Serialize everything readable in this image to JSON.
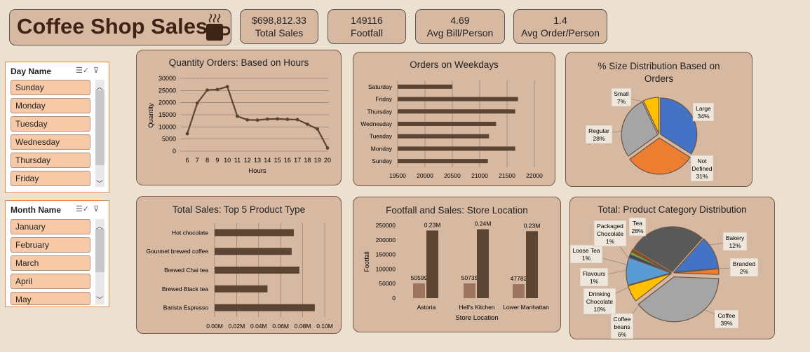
{
  "dashboard": {
    "title": "Coffee Shop Sales"
  },
  "kpis": [
    {
      "value": "$698,812.33",
      "label": "Total Sales"
    },
    {
      "value": "149116",
      "label": "Footfall"
    },
    {
      "value": "4.69",
      "label": "Avg Bill/Person"
    },
    {
      "value": "1.4",
      "label": "Avg Order/Person"
    }
  ],
  "day_slicer": {
    "header": "Day Name",
    "items": [
      "Sunday",
      "Monday",
      "Tuesday",
      "Wednesday",
      "Thursday",
      "Friday"
    ]
  },
  "month_slicer": {
    "header": "Month Name",
    "items": [
      "January",
      "February",
      "March",
      "April",
      "May"
    ]
  },
  "colors": {
    "panel": "#d7b8a1",
    "bar": "#5c4433",
    "bar_light": "#9c7460",
    "accent": "#e58a4a"
  },
  "chart_data": [
    {
      "type": "line",
      "title": "Quantity Orders: Based on Hours",
      "xlabel": "Hours",
      "ylabel": "Quantity",
      "x": [
        6,
        7,
        8,
        9,
        10,
        11,
        12,
        13,
        14,
        15,
        16,
        17,
        18,
        19,
        20
      ],
      "values": [
        7200,
        19800,
        25200,
        25400,
        26600,
        14400,
        12900,
        12800,
        13200,
        13300,
        13100,
        13000,
        11100,
        9100,
        1300
      ],
      "yticks": [
        "0",
        "5000",
        "10000",
        "15000",
        "20000",
        "25000",
        "30000"
      ],
      "ylim": [
        0,
        30000
      ]
    },
    {
      "type": "bar",
      "title": "Orders on Weekdays",
      "categories": [
        "Saturday",
        "Friday",
        "Thursday",
        "Wednesday",
        "Tuesday",
        "Monday",
        "Sunday"
      ],
      "values": [
        20500,
        21700,
        21650,
        21300,
        21170,
        21650,
        21150
      ],
      "xticks": [
        "19500",
        "20000",
        "20500",
        "21000",
        "21500",
        "22000"
      ],
      "xlim": [
        19500,
        22000
      ]
    },
    {
      "type": "pie",
      "title": "% Size Distribution Based on Orders",
      "slices": [
        {
          "label": "Large",
          "pct_label": "34%",
          "value": 34,
          "color": "#4472c4"
        },
        {
          "label": "Not Defined",
          "pct_label": "31%",
          "value": 31,
          "color": "#ed7d31"
        },
        {
          "label": "Regular",
          "pct_label": "28%",
          "value": 28,
          "color": "#a5a5a5"
        },
        {
          "label": "Small",
          "pct_label": "7%",
          "value": 7,
          "color": "#ffc000"
        }
      ]
    },
    {
      "type": "bar",
      "title": "Total Sales: Top 5 Product Type",
      "categories": [
        "Hot chocolate",
        "Gourmet brewed coffee",
        "Brewed Chai tea",
        "Brewed Black tea",
        "Barista Espresso"
      ],
      "values": [
        0.072,
        0.07,
        0.077,
        0.048,
        0.091
      ],
      "xticks": [
        "0.00M",
        "0.02M",
        "0.04M",
        "0.06M",
        "0.08M",
        "0.10M"
      ],
      "xlim": [
        0,
        0.1
      ]
    },
    {
      "type": "bar",
      "title": "Footfall and Sales: Store Location",
      "xlabel": "Store Location",
      "ylabel": "Footfall",
      "categories": [
        "Astoria",
        "Hell's Kitchen",
        "Lower Manhattan"
      ],
      "series": [
        {
          "values": [
            50599,
            50735,
            47782
          ],
          "labels": [
            "50599",
            "50735",
            "47782"
          ],
          "color": "#9c7460"
        },
        {
          "values": [
            232244,
            236511,
            230057
          ],
          "labels": [
            "0.23M",
            "0.24M",
            "0.23M"
          ],
          "color": "#5c4433"
        }
      ],
      "yticks": [
        "0",
        "50000",
        "100000",
        "150000",
        "200000",
        "250000"
      ],
      "ylim": [
        0,
        250000
      ]
    },
    {
      "type": "pie",
      "title": "Total: Product Category Distribution",
      "slices": [
        {
          "label": "Coffee",
          "pct_label": "39%",
          "value": 39,
          "color": "#a5a5a5"
        },
        {
          "label": "Coffee beans",
          "pct_label": "6%",
          "value": 6,
          "color": "#ffc000"
        },
        {
          "label": "Drinking Chocolate",
          "pct_label": "10%",
          "value": 10,
          "color": "#5b9bd5"
        },
        {
          "label": "Flavours",
          "pct_label": "1%",
          "value": 1,
          "color": "#264478"
        },
        {
          "label": "Loose Tea",
          "pct_label": "1%",
          "value": 1,
          "color": "#70ad47"
        },
        {
          "label": "Packaged Chocolate",
          "pct_label": "1%",
          "value": 1,
          "color": "#9e480e"
        },
        {
          "label": "Tea",
          "pct_label": "28%",
          "value": 28,
          "color": "#595959"
        },
        {
          "label": "Bakery",
          "pct_label": "12%",
          "value": 12,
          "color": "#4472c4"
        },
        {
          "label": "Branded",
          "pct_label": "2%",
          "value": 2,
          "color": "#ed7d31"
        }
      ]
    }
  ]
}
